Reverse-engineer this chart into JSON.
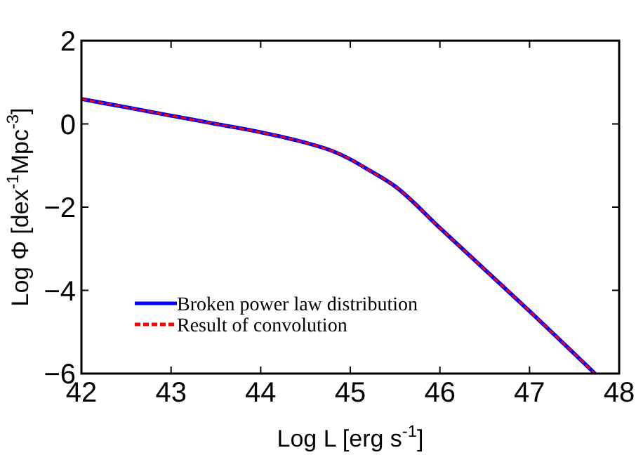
{
  "chart_data": {
    "type": "line",
    "xlabel": "Log L [erg $^{}$s$^{-1}$]",
    "ylabel": "Log Φ [dex$^{-1}$Mpc$^{-3}$]",
    "x": [
      42,
      42.5,
      43,
      43.5,
      44,
      44.5,
      44.8,
      45,
      45.2,
      45.5,
      46,
      46.5,
      47,
      47.73
    ],
    "xlim": [
      42,
      48
    ],
    "ylim": [
      -6,
      2
    ],
    "xticks": [
      42,
      43,
      44,
      45,
      46,
      47,
      48
    ],
    "yticks": [
      -6,
      -4,
      -2,
      0,
      2
    ],
    "legend": "bottom left",
    "grid": false,
    "series": [
      {
        "name": "Broken power law distribution",
        "color": "#0000ff",
        "line_style": "solid",
        "values": [
          0.6,
          0.4,
          0.2,
          0.0,
          -0.2,
          -0.45,
          -0.65,
          -0.85,
          -1.1,
          -1.5,
          -2.5,
          -3.5,
          -4.5,
          -6
        ]
      },
      {
        "name": "Result of convolution",
        "color": "#ff0000",
        "line_style": "dashed",
        "values": [
          0.6,
          0.4,
          0.2,
          0.0,
          -0.2,
          -0.45,
          -0.65,
          -0.85,
          -1.1,
          -1.5,
          -2.5,
          -3.5,
          -4.5,
          -6
        ]
      }
    ]
  }
}
